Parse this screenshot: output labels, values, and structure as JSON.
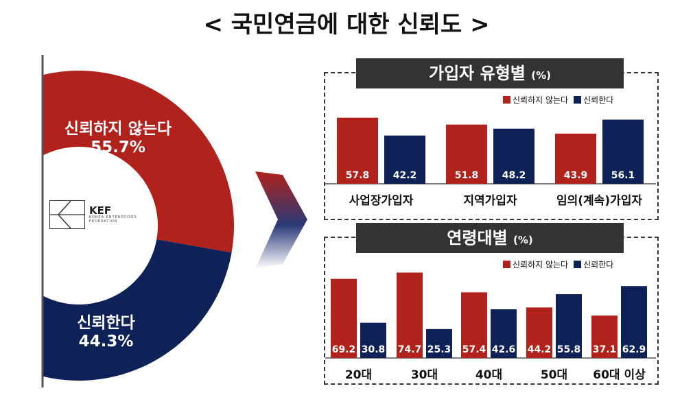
{
  "title": "< 국민연금에 대한 신뢰도 >",
  "colors": {
    "distrust": "#b0221b",
    "trust": "#0e2258"
  },
  "logo": {
    "name": "KEF",
    "sub": "KOREA ENTERPRISES FEDERATION"
  },
  "chart_data": [
    {
      "type": "pie",
      "labels": [
        "신뢰하지 않는다",
        "신뢰한다"
      ],
      "values": [
        55.7,
        44.3
      ],
      "value_labels": [
        "55.7%",
        "44.3%"
      ]
    },
    {
      "type": "bar",
      "title": "가입자 유형별",
      "unit": "(%)",
      "legend": "top-right",
      "categories": [
        "사업장가입자",
        "지역가입자",
        "임의(계속)가입자"
      ],
      "series": [
        {
          "name": "신뢰하지 않는다",
          "values": [
            57.8,
            51.8,
            43.9
          ],
          "labels": [
            "57.8",
            "51.8",
            "43.9"
          ]
        },
        {
          "name": "신뢰한다",
          "values": [
            42.2,
            48.2,
            56.1
          ],
          "labels": [
            "42.2",
            "48.2",
            "56.1"
          ]
        }
      ]
    },
    {
      "type": "bar",
      "title": "연령대별",
      "unit": "(%)",
      "legend": "top-right",
      "categories": [
        "20대",
        "30대",
        "40대",
        "50대",
        "60대 이상"
      ],
      "series": [
        {
          "name": "신뢰하지 않는다",
          "values": [
            69.2,
            74.7,
            57.4,
            44.2,
            37.1
          ],
          "labels": [
            "69.2",
            "74.7",
            "57.4",
            "44.2",
            "37.1"
          ]
        },
        {
          "name": "신뢰한다",
          "values": [
            30.8,
            25.3,
            42.6,
            55.8,
            62.9
          ],
          "labels": [
            "30.8",
            "25.3",
            "42.6",
            "55.8",
            "62.9"
          ]
        }
      ]
    }
  ]
}
